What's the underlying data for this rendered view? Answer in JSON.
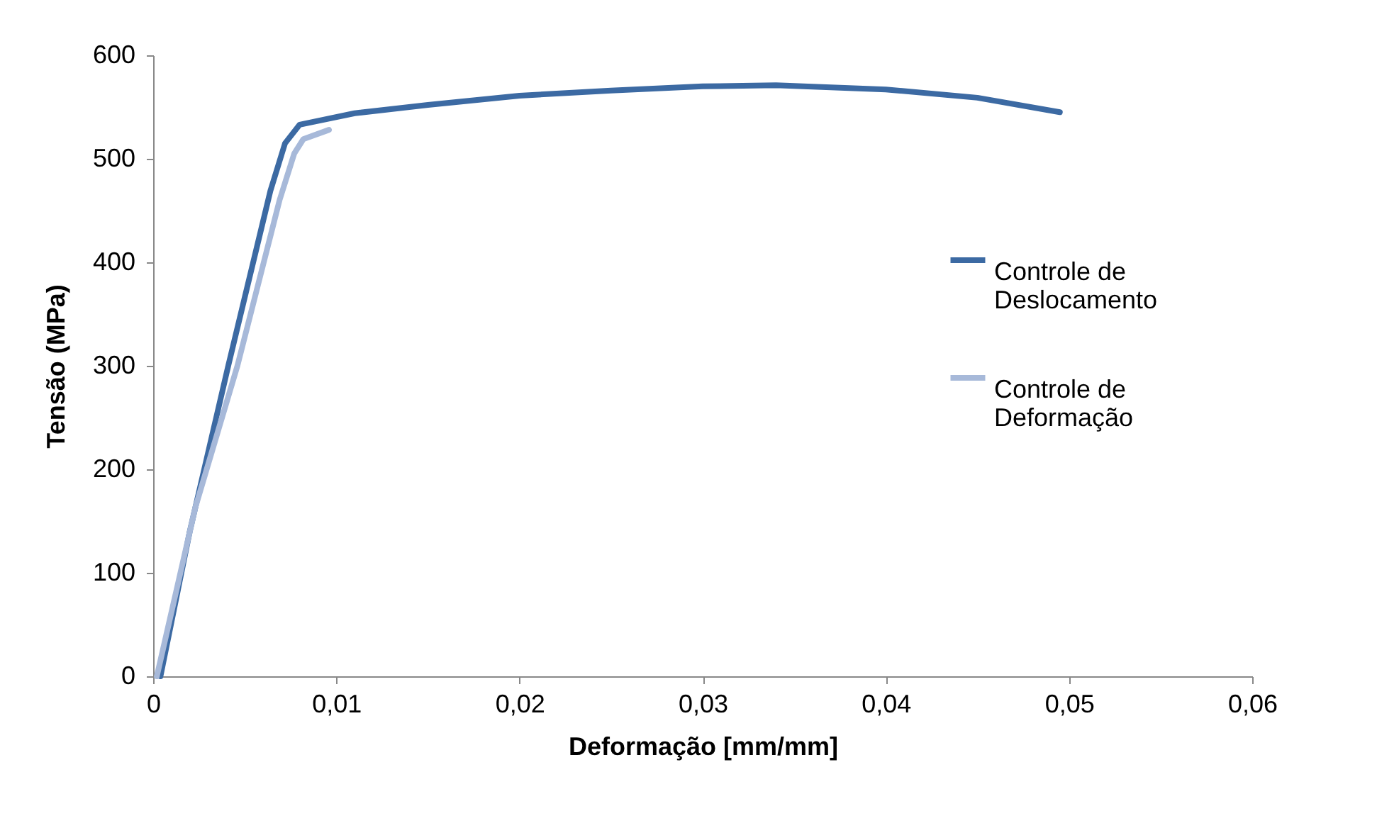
{
  "chart_data": {
    "type": "line",
    "xlabel": "Deformação [mm/mm]",
    "ylabel": "Tensão (MPa)",
    "xlim": [
      0,
      0.06
    ],
    "ylim": [
      0,
      600
    ],
    "xticks": [
      {
        "value": 0,
        "label": "0"
      },
      {
        "value": 0.01,
        "label": "0,01"
      },
      {
        "value": 0.02,
        "label": "0,02"
      },
      {
        "value": 0.03,
        "label": "0,03"
      },
      {
        "value": 0.04,
        "label": "0,04"
      },
      {
        "value": 0.05,
        "label": "0,05"
      },
      {
        "value": 0.06,
        "label": "0,06"
      }
    ],
    "yticks": [
      0,
      100,
      200,
      300,
      400,
      500,
      600
    ],
    "grid": false,
    "legend": "right",
    "line_style": "solid",
    "marker": "none",
    "series": [
      {
        "name": "Controle de Deslocamento",
        "color": "#3c6aa3",
        "x": [
          0.0004,
          0.002,
          0.0041,
          0.0064,
          0.0072,
          0.008,
          0.011,
          0.015,
          0.02,
          0.025,
          0.03,
          0.034,
          0.04,
          0.045,
          0.0495
        ],
        "values": [
          0,
          140,
          300,
          469,
          515,
          533,
          544,
          552,
          561,
          566,
          570,
          571,
          567,
          559,
          545
        ]
      },
      {
        "name": "Controle de Deformação",
        "color": "#a7b9d9",
        "x": [
          0.0002,
          0.0023,
          0.0046,
          0.0069,
          0.0077,
          0.0082,
          0.0096
        ],
        "values": [
          0,
          163,
          300,
          460,
          505,
          519,
          528
        ]
      }
    ]
  }
}
